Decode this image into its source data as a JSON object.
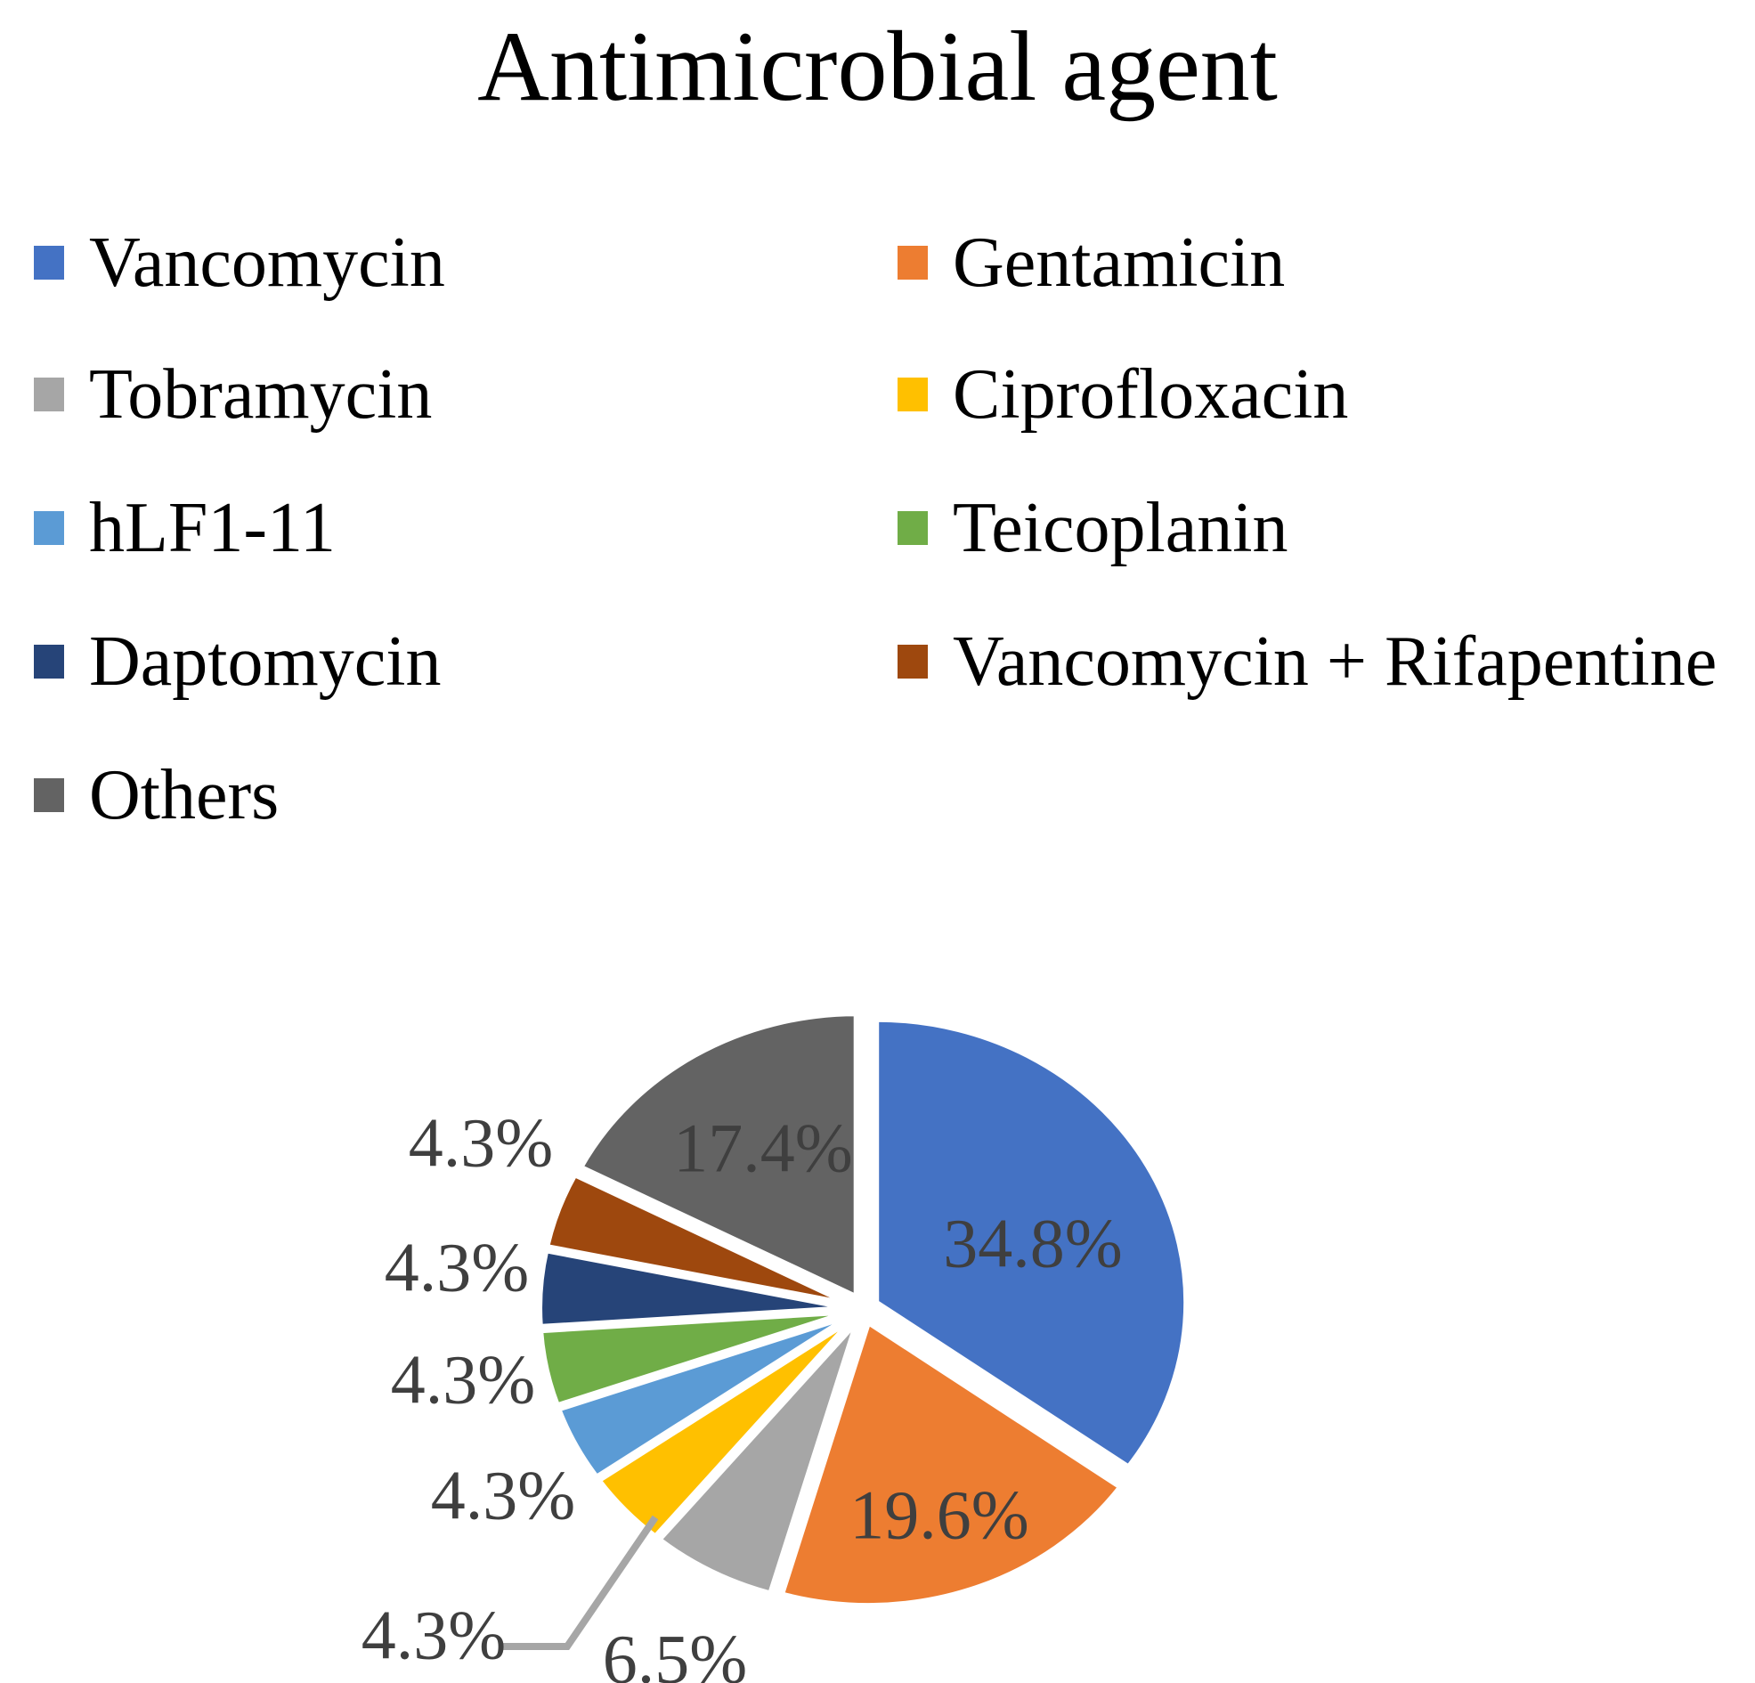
{
  "title": "Antimicrobial agent",
  "chart_data": {
    "type": "pie",
    "title": "Antimicrobial agent",
    "unit": "percent",
    "start_angle_deg": 0,
    "direction": "clockwise",
    "legend_position": "top, two columns, row-major order",
    "exploded": true,
    "label_color": "#3F3F3F",
    "leader_line_color": "#A6A6A6",
    "slice_border_color": "#FFFFFF",
    "background_color": "#FFFFFF",
    "categories": [
      "Vancomycin",
      "Gentamicin",
      "Tobramycin",
      "Ciprofloxacin",
      "hLF1-11",
      "Teicoplanin",
      "Daptomycin",
      "Vancomycin + Rifapentine",
      "Others"
    ],
    "values": [
      34.8,
      19.6,
      6.5,
      4.3,
      4.3,
      4.3,
      4.3,
      4.3,
      17.4
    ],
    "slices": [
      {
        "label": "Vancomycin",
        "value": 34.8,
        "display": "34.8%",
        "color": "#4472C4",
        "label_placement": "inside"
      },
      {
        "label": "Gentamicin",
        "value": 19.6,
        "display": "19.6%",
        "color": "#ED7D31",
        "label_placement": "inside"
      },
      {
        "label": "Tobramycin",
        "value": 6.5,
        "display": "6.5%",
        "color": "#A6A6A6",
        "label_placement": "outside"
      },
      {
        "label": "Ciprofloxacin",
        "value": 4.3,
        "display": "4.3%",
        "color": "#FFC000",
        "label_placement": "outside-with-leader"
      },
      {
        "label": "hLF1-11",
        "value": 4.3,
        "display": "4.3%",
        "color": "#5B9BD5",
        "label_placement": "outside"
      },
      {
        "label": "Teicoplanin",
        "value": 4.3,
        "display": "4.3%",
        "color": "#70AD47",
        "label_placement": "outside"
      },
      {
        "label": "Daptomycin",
        "value": 4.3,
        "display": "4.3%",
        "color": "#264478",
        "label_placement": "outside"
      },
      {
        "label": "Vancomycin + Rifapentine",
        "value": 4.3,
        "display": "4.3%",
        "color": "#9E480E",
        "label_placement": "outside"
      },
      {
        "label": "Others",
        "value": 17.4,
        "display": "17.4%",
        "color": "#636363",
        "label_placement": "inside"
      }
    ]
  }
}
